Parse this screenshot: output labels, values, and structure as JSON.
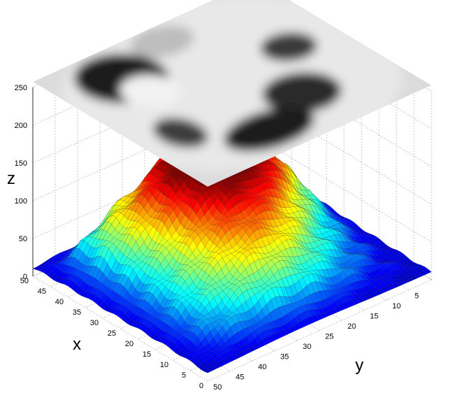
{
  "chart_data": {
    "type": "surface3d",
    "title": "",
    "xlabel": "x",
    "ylabel": "y",
    "zlabel": "z",
    "xlim": [
      0,
      50
    ],
    "ylim": [
      0,
      50
    ],
    "zlim": [
      0,
      250
    ],
    "x_ticks": [
      "0",
      "5",
      "10",
      "15",
      "20",
      "25",
      "30",
      "35",
      "40",
      "45",
      "50"
    ],
    "y_ticks": [
      "5",
      "10",
      "15",
      "20",
      "25",
      "30",
      "35",
      "40",
      "45",
      "50"
    ],
    "z_ticks": [
      "0",
      "50",
      "100",
      "150",
      "200",
      "250"
    ],
    "grid": true,
    "colormap": "jet",
    "surface": {
      "grid_size": 50,
      "z_min": 0,
      "z_max": 130,
      "base_level": 10,
      "peak_region": "around x 30–45, y 10–30",
      "description_values": [
        {
          "x": 38,
          "y": 20,
          "z": 128
        },
        {
          "x": 25,
          "y": 25,
          "z": 95
        },
        {
          "x": 10,
          "y": 30,
          "z": 45
        },
        {
          "x": 45,
          "y": 45,
          "z": 20
        },
        {
          "x": 5,
          "y": 5,
          "z": 15
        }
      ]
    },
    "texture_plane": {
      "z": 250,
      "colormap": "gray",
      "content": "grayscale face image projected above the surface"
    }
  },
  "colors": {
    "background": "#ffffff",
    "grid": "#9a9a9a",
    "frame": "#000000"
  }
}
